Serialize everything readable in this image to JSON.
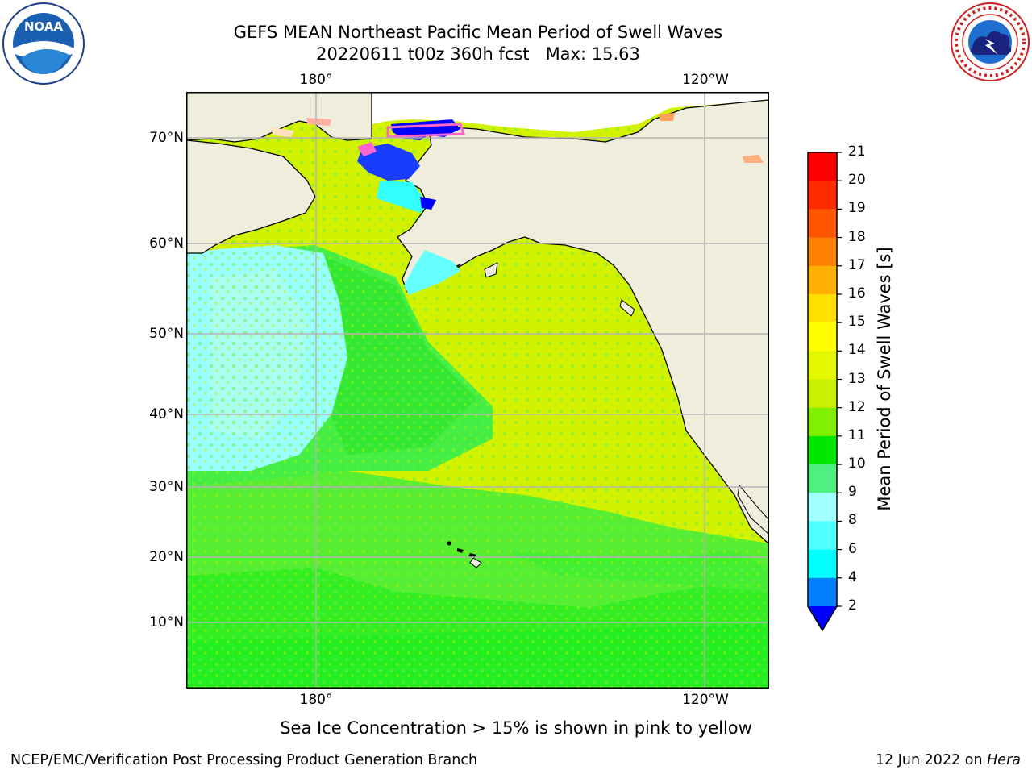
{
  "title_line1": "GEFS MEAN Northeast Pacific Mean Period of Swell Waves",
  "title_line2": "20220611 t00z 360h fcst   Max: 15.63",
  "longitude_labels": [
    "180°",
    "120°W"
  ],
  "latitude_labels": [
    "70°N",
    "60°N",
    "50°N",
    "40°N",
    "30°N",
    "20°N",
    "10°N"
  ],
  "colorbar": {
    "label": "Mean Period of Swell Waves [s]",
    "ticks": [
      "21",
      "20",
      "19",
      "18",
      "17",
      "16",
      "15",
      "14",
      "13",
      "12",
      "11",
      "10",
      "9",
      "8",
      "6",
      "4",
      "2"
    ],
    "colors": [
      "#ff0000",
      "#ff2a00",
      "#ff5500",
      "#ff8000",
      "#ffb000",
      "#ffe000",
      "#ffff00",
      "#e6f800",
      "#c8f000",
      "#80f000",
      "#00e800",
      "#50f080",
      "#a0ffff",
      "#50ffff",
      "#00ffff",
      "#0080ff"
    ],
    "extend_color": "#0000ff"
  },
  "caption": "Sea Ice Concentration > 15% is shown in pink to yellow",
  "footer_left": "NCEP/EMC/Verification Post Processing Product Generation Branch",
  "footer_right_date": "12 Jun 2022 on",
  "footer_right_machine": "Hera",
  "logo_left_text": "NOAA",
  "colors": {
    "land": "#efeddc",
    "ocean_green": "#33ee33",
    "ocean_yellow": "#d8f200",
    "ocean_cyan": "#99ffff",
    "gridline": "#b4b4b4"
  }
}
